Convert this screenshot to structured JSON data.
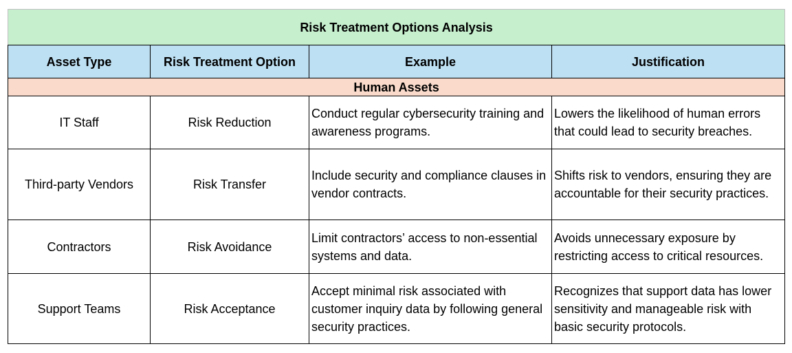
{
  "table": {
    "title": "Risk Treatment Options Analysis",
    "headers": [
      "Asset Type",
      "Risk Treatment Option",
      "Example",
      "Justification"
    ],
    "section": "Human Assets",
    "rows": [
      {
        "asset_type": "IT Staff",
        "option": "Risk Reduction",
        "example": "Conduct regular cybersecurity training and awareness programs.",
        "justification": "Lowers the likelihood of human errors that could lead to security breaches."
      },
      {
        "asset_type": "Third-party Vendors",
        "option": "Risk Transfer",
        "example": "Include security and compliance clauses in vendor contracts.",
        "justification": "Shifts risk to vendors, ensuring they are accountable for their security practices."
      },
      {
        "asset_type": "Contractors",
        "option": "Risk Avoidance",
        "example": "Limit contractors’ access to non-essential systems and data.",
        "justification": "Avoids unnecessary exposure by restricting access to critical resources."
      },
      {
        "asset_type": "Support Teams",
        "option": "Risk Acceptance",
        "example": "Accept minimal risk associated with customer inquiry data by following general security practices.",
        "justification": "Recognizes that support data has lower sensitivity and manageable risk with basic security protocols."
      }
    ]
  },
  "colors": {
    "title_bg": "#c6efce",
    "header_bg": "#bde0f2",
    "section_bg": "#fadbcb",
    "border": "#000000"
  }
}
